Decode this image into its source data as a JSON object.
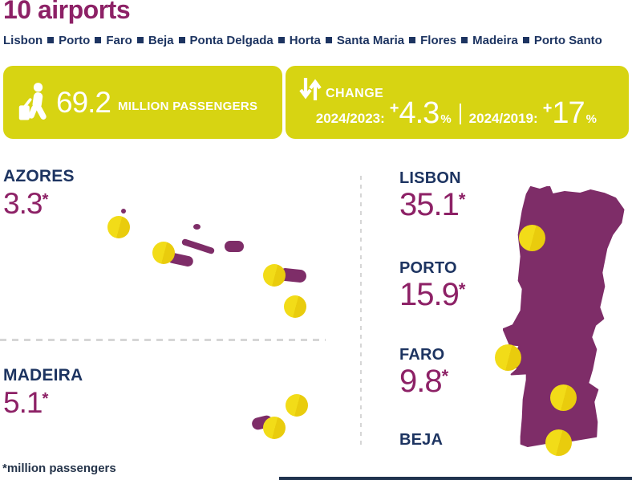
{
  "title": "10 airports",
  "airports": [
    "Lisbon",
    "Porto",
    "Faro",
    "Beja",
    "Ponta Delgada",
    "Horta",
    "Santa Maria",
    "Flores",
    "Madeira",
    "Porto Santo"
  ],
  "stats": {
    "passengers": {
      "value": "69.2",
      "label": "MILLION PASSENGERS",
      "icon": "traveler-icon"
    },
    "change": {
      "label": "CHANGE",
      "icon": "change-arrows-icon",
      "separator": "|",
      "items": [
        {
          "period": "2024/2023:",
          "sign": "+",
          "value": "4.3",
          "unit": "%"
        },
        {
          "period": "2024/2019:",
          "sign": "+",
          "value": "17",
          "unit": "%"
        }
      ]
    }
  },
  "regions": {
    "azores": {
      "label": "AZORES",
      "value": "3.3",
      "note_symbol": "*"
    },
    "madeira": {
      "label": "MADEIRA",
      "value": "5.1",
      "note_symbol": "*"
    },
    "lisbon": {
      "label": "LISBON",
      "value": "35.1",
      "note_symbol": "*"
    },
    "porto": {
      "label": "PORTO",
      "value": "15.9",
      "note_symbol": "*"
    },
    "faro": {
      "label": "FARO",
      "value": "9.8",
      "note_symbol": "*"
    },
    "beja": {
      "label": "BEJA"
    }
  },
  "footnote": "*million passengers",
  "colors": {
    "banner_yellow": "#d7d412",
    "dot_yellow": "#f0d90f",
    "map_purple": "#7e2d68",
    "text_purple": "#8d2166",
    "text_navy": "#1d3461"
  },
  "chart_data": {
    "type": "map-infographic",
    "title": "10 airports",
    "total_passengers_millions": 69.2,
    "change": [
      {
        "period": "2024/2023",
        "percent": 4.3
      },
      {
        "period": "2024/2019",
        "percent": 17
      }
    ],
    "unit": "million passengers",
    "values": [
      {
        "region": "Azores",
        "passengers_millions": 3.3
      },
      {
        "region": "Madeira",
        "passengers_millions": 5.1
      },
      {
        "region": "Lisbon",
        "passengers_millions": 35.1
      },
      {
        "region": "Porto",
        "passengers_millions": 15.9
      },
      {
        "region": "Faro",
        "passengers_millions": 9.8
      },
      {
        "region": "Beja",
        "passengers_millions": null
      }
    ]
  }
}
